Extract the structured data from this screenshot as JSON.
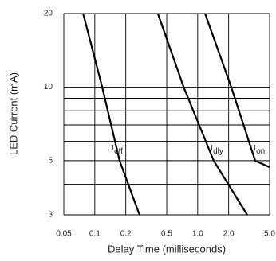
{
  "chart_data": {
    "type": "line",
    "xlabel": "Delay Time (milliseconds)",
    "ylabel": "LED Current (mA)",
    "xscale": "log",
    "yscale": "log",
    "xlim": [
      0.05,
      5.0
    ],
    "ylim": [
      3,
      20
    ],
    "xticks": [
      0.05,
      0.1,
      0.2,
      0.5,
      {
        "value": 1.0,
        "label": "1.0"
      },
      {
        "value": 2.0,
        "label": "2.0"
      },
      {
        "value": 5.0,
        "label": "5.0"
      }
    ],
    "yticks": [
      3,
      5,
      10,
      20
    ],
    "minor_yticks": [
      4,
      6,
      7,
      8,
      9
    ],
    "grid": true,
    "series": [
      {
        "label": "t",
        "sub": "off",
        "color": "#000000",
        "x": [
          0.077,
          0.118,
          0.174,
          0.272
        ],
        "values": [
          20,
          10,
          5,
          3
        ]
      },
      {
        "label": "t",
        "sub": "dly",
        "color": "#000000",
        "x": [
          0.41,
          0.73,
          1.43,
          3.03
        ],
        "values": [
          20,
          10,
          5,
          3
        ]
      },
      {
        "label": "t",
        "sub": "on",
        "color": "#000000",
        "x": [
          1.18,
          2.12,
          3.62,
          5.0
        ],
        "values": [
          20,
          10,
          5,
          4.7
        ]
      }
    ]
  }
}
